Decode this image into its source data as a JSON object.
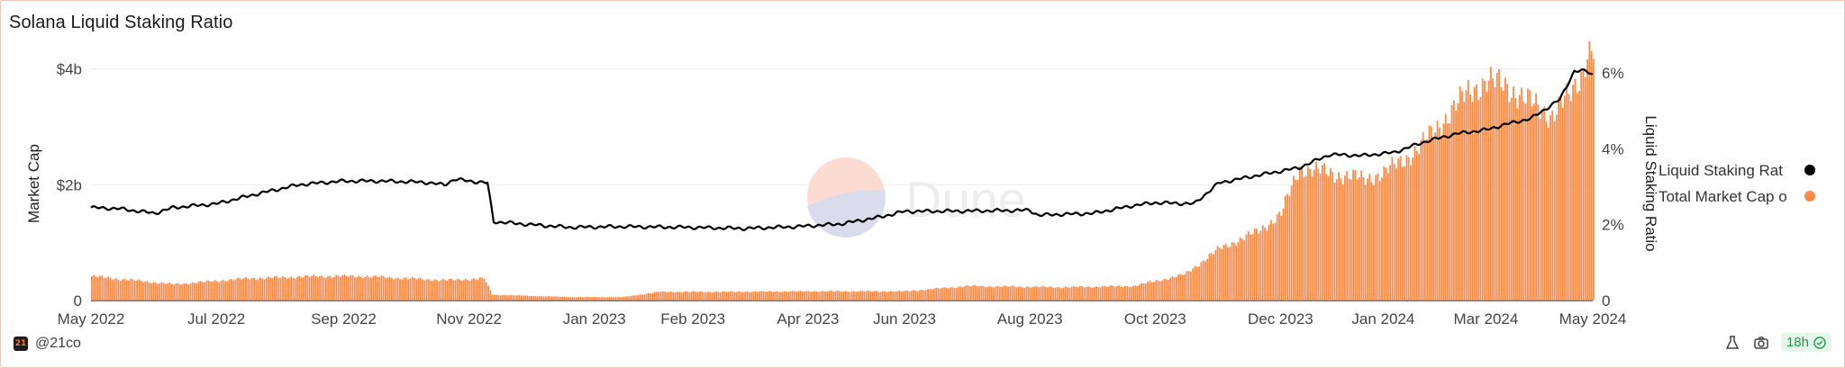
{
  "chart_data": {
    "type": "bar+line",
    "title": "Solana Liquid Staking Ratio",
    "xlabel": "",
    "y_left_label": "Market Cap",
    "y_right_label": "Liquid Staking Ratio",
    "y_left_ticks": [
      "0",
      "$2b",
      "$4b"
    ],
    "y_right_ticks": [
      "0",
      "2%",
      "4%",
      "6%"
    ],
    "y_left_range_billion": [
      0,
      4.01
    ],
    "y_right_range_percent": [
      0,
      6.12
    ],
    "x_start": "2022-05-01",
    "x_end": "2024-05-01",
    "x_ticks": [
      "May 2022",
      "Jul 2022",
      "Sep 2022",
      "Nov 2022",
      "Jan 2023",
      "Feb 2023",
      "Apr 2023",
      "Jun 2023",
      "Aug 2023",
      "Oct 2023",
      "Dec 2023",
      "Jan 2024",
      "Mar 2024",
      "May 2024"
    ],
    "x_tick_dates": [
      "2022-05-01",
      "2022-07-01",
      "2022-09-01",
      "2022-11-01",
      "2023-01-01",
      "2023-02-18",
      "2023-04-15",
      "2023-06-01",
      "2023-08-01",
      "2023-10-01",
      "2023-12-01",
      "2024-01-20",
      "2024-03-10",
      "2024-05-01"
    ],
    "grid": "horizontal",
    "legend_position": "right",
    "series": [
      {
        "name": "Liquid Staking Rat",
        "type": "line",
        "axis": "right",
        "unit": "%",
        "color": "#000000",
        "points": [
          [
            "2022-05-01",
            2.45
          ],
          [
            "2022-05-15",
            2.42
          ],
          [
            "2022-06-01",
            2.3
          ],
          [
            "2022-06-10",
            2.45
          ],
          [
            "2022-07-01",
            2.55
          ],
          [
            "2022-07-20",
            2.8
          ],
          [
            "2022-08-10",
            3.05
          ],
          [
            "2022-08-20",
            3.1
          ],
          [
            "2022-09-01",
            3.15
          ],
          [
            "2022-09-20",
            3.15
          ],
          [
            "2022-10-10",
            3.12
          ],
          [
            "2022-10-20",
            3.05
          ],
          [
            "2022-10-25",
            3.2
          ],
          [
            "2022-11-01",
            3.15
          ],
          [
            "2022-11-10",
            3.1
          ],
          [
            "2022-11-13",
            2.08
          ],
          [
            "2022-12-01",
            2.0
          ],
          [
            "2022-12-20",
            1.93
          ],
          [
            "2023-01-15",
            1.95
          ],
          [
            "2023-02-15",
            1.93
          ],
          [
            "2023-03-15",
            1.9
          ],
          [
            "2023-04-10",
            1.95
          ],
          [
            "2023-05-01",
            2.02
          ],
          [
            "2023-05-20",
            2.2
          ],
          [
            "2023-06-01",
            2.35
          ],
          [
            "2023-07-01",
            2.36
          ],
          [
            "2023-08-01",
            2.38
          ],
          [
            "2023-08-05",
            2.25
          ],
          [
            "2023-09-01",
            2.3
          ],
          [
            "2023-09-20",
            2.5
          ],
          [
            "2023-10-01",
            2.58
          ],
          [
            "2023-10-20",
            2.55
          ],
          [
            "2023-11-01",
            3.1
          ],
          [
            "2023-11-20",
            3.3
          ],
          [
            "2023-12-10",
            3.5
          ],
          [
            "2023-12-25",
            3.85
          ],
          [
            "2024-01-10",
            3.82
          ],
          [
            "2024-01-25",
            3.9
          ],
          [
            "2024-02-10",
            4.2
          ],
          [
            "2024-02-25",
            4.4
          ],
          [
            "2024-03-10",
            4.5
          ],
          [
            "2024-03-20",
            4.65
          ],
          [
            "2024-04-01",
            4.8
          ],
          [
            "2024-04-15",
            5.3
          ],
          [
            "2024-04-22",
            6.05
          ],
          [
            "2024-04-28",
            6.05
          ],
          [
            "2024-05-01",
            5.95
          ]
        ]
      },
      {
        "name": "Total Market Cap o",
        "type": "bar",
        "axis": "left",
        "unit": "$b",
        "color": "#ff8a46",
        "points": [
          [
            "2022-05-01",
            0.42
          ],
          [
            "2022-06-10",
            0.28
          ],
          [
            "2022-07-15",
            0.38
          ],
          [
            "2022-08-20",
            0.42
          ],
          [
            "2022-09-10",
            0.42
          ],
          [
            "2022-10-20",
            0.35
          ],
          [
            "2022-11-08",
            0.38
          ],
          [
            "2022-11-12",
            0.1
          ],
          [
            "2022-12-20",
            0.06
          ],
          [
            "2023-01-15",
            0.06
          ],
          [
            "2023-02-01",
            0.15
          ],
          [
            "2023-03-01",
            0.15
          ],
          [
            "2023-04-15",
            0.16
          ],
          [
            "2023-06-01",
            0.16
          ],
          [
            "2023-07-01",
            0.25
          ],
          [
            "2023-08-15",
            0.23
          ],
          [
            "2023-09-20",
            0.25
          ],
          [
            "2023-10-15",
            0.45
          ],
          [
            "2023-11-01",
            0.9
          ],
          [
            "2023-11-20",
            1.2
          ],
          [
            "2023-12-01",
            1.5
          ],
          [
            "2023-12-10",
            2.3
          ],
          [
            "2023-12-25",
            2.2
          ],
          [
            "2024-01-10",
            2.1
          ],
          [
            "2024-01-20",
            2.2
          ],
          [
            "2024-02-05",
            2.6
          ],
          [
            "2024-02-20",
            3.2
          ],
          [
            "2024-03-01",
            3.6
          ],
          [
            "2024-03-10",
            3.8
          ],
          [
            "2024-03-20",
            3.7
          ],
          [
            "2024-04-01",
            3.4
          ],
          [
            "2024-04-10",
            3.2
          ],
          [
            "2024-04-20",
            3.55
          ],
          [
            "2024-04-25",
            3.9
          ],
          [
            "2024-04-28",
            4.3
          ],
          [
            "2024-05-01",
            4.35
          ]
        ]
      }
    ],
    "watermark": "Dune"
  },
  "footer": {
    "handle": "@21co",
    "age": "18h",
    "icons": [
      "flask-icon",
      "camera-icon",
      "check-circle-icon"
    ]
  }
}
